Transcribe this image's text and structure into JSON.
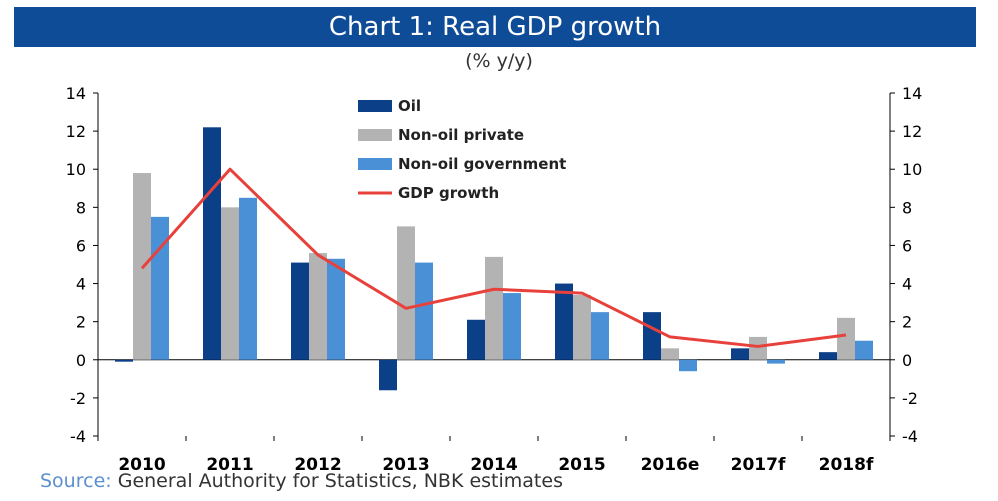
{
  "header": {
    "title": "Chart 1: Real GDP growth",
    "subtitle": "(% y/y)"
  },
  "source": {
    "label": "Source:",
    "text": "General Authority for Statistics, NBK estimates"
  },
  "colors": {
    "title_bg": "#0f4c97",
    "oil": "#0b3f88",
    "non_oil_private": "#b3b3b3",
    "non_oil_government": "#4a90d6",
    "gdp_growth": "#e8413b",
    "source_label": "#5b8fcf"
  },
  "chart_data": {
    "type": "bar",
    "categories": [
      "2010",
      "2011",
      "2012",
      "2013",
      "2014",
      "2015",
      "2016e",
      "2017f",
      "2018f"
    ],
    "series": [
      {
        "name": "Oil",
        "type": "bar",
        "values": [
          -0.1,
          12.2,
          5.1,
          -1.6,
          2.1,
          4.0,
          2.5,
          0.6,
          0.4
        ]
      },
      {
        "name": "Non-oil private",
        "type": "bar",
        "values": [
          9.8,
          8.0,
          5.6,
          7.0,
          5.4,
          3.4,
          0.6,
          1.2,
          2.2
        ]
      },
      {
        "name": "Non-oil government",
        "type": "bar",
        "values": [
          7.5,
          8.5,
          5.3,
          5.1,
          3.5,
          2.5,
          -0.6,
          -0.2,
          1.0
        ]
      },
      {
        "name": "GDP growth",
        "type": "line",
        "values": [
          4.8,
          10.0,
          5.5,
          2.7,
          3.7,
          3.5,
          1.2,
          0.7,
          1.3
        ]
      }
    ],
    "yticks": [
      "14",
      "12",
      "10",
      "8",
      "6",
      "4",
      "2",
      "0",
      "-2",
      "-4"
    ],
    "ylim": [
      -4,
      14
    ],
    "y2lim": [
      -4,
      14
    ],
    "grid": false,
    "legend_position": "top-center"
  }
}
